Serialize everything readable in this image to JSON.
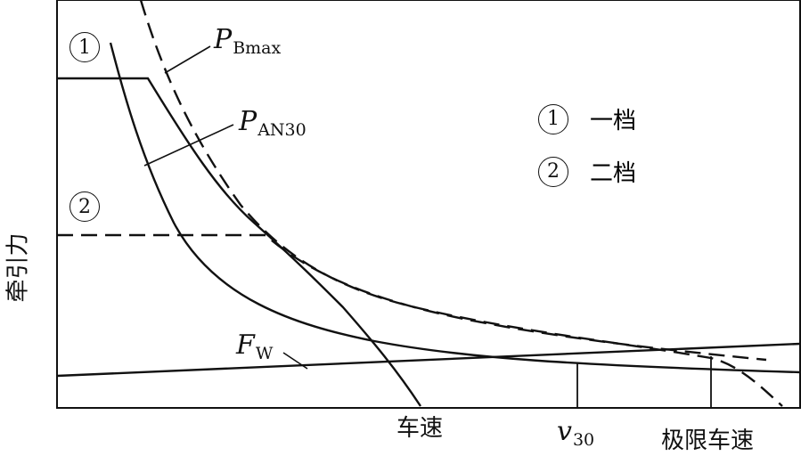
{
  "y_axis_label": "牵引力",
  "x_ticks": {
    "speed": "车速",
    "limit_speed": "极限车速"
  },
  "v30": {
    "base": "v",
    "sub": "30"
  },
  "curve_labels": {
    "p_bmax": {
      "base": "P",
      "sub": "Bmax"
    },
    "p_an30": {
      "base": "P",
      "sub": "AN30"
    },
    "f_w": {
      "base": "F",
      "sub": "W"
    }
  },
  "gear_markers": [
    "1",
    "2"
  ],
  "legend": [
    {
      "num": "1",
      "label": "一档"
    },
    {
      "num": "2",
      "label": "二档"
    }
  ]
}
